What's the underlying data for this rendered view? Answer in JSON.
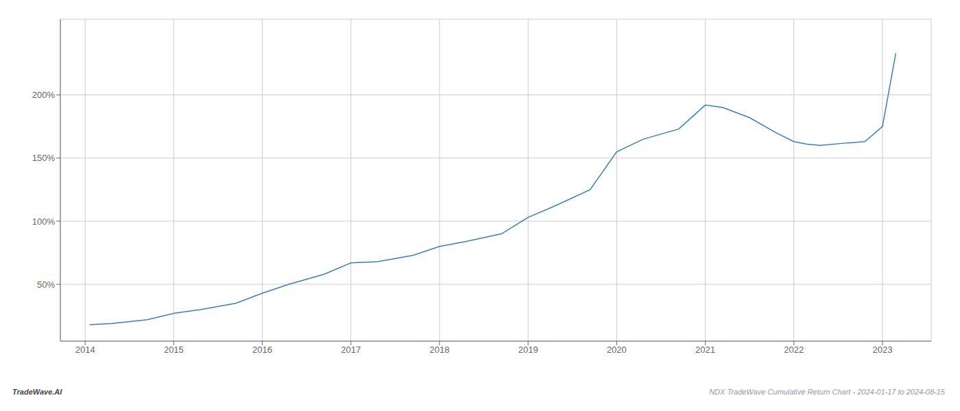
{
  "chart_data": {
    "type": "line",
    "x": [
      2014.05,
      2014.3,
      2014.7,
      2015.0,
      2015.3,
      2015.7,
      2016.0,
      2016.3,
      2016.7,
      2017.0,
      2017.3,
      2017.7,
      2018.0,
      2018.3,
      2018.7,
      2019.0,
      2019.3,
      2019.7,
      2020.0,
      2020.3,
      2020.7,
      2021.0,
      2021.2,
      2021.5,
      2021.8,
      2022.0,
      2022.15,
      2022.3,
      2022.6,
      2022.8,
      2023.0,
      2023.15
    ],
    "values": [
      18,
      19,
      22,
      27,
      30,
      35,
      43,
      50,
      58,
      67,
      68,
      73,
      80,
      84,
      90,
      103,
      112,
      125,
      155,
      165,
      173,
      192,
      190,
      182,
      170,
      163,
      161,
      160,
      162,
      163,
      175,
      233
    ],
    "color": "#3a7ebf",
    "xlim": [
      2013.72,
      2023.55
    ],
    "ylim": [
      5,
      260
    ],
    "xticks": [
      2014,
      2015,
      2016,
      2017,
      2018,
      2019,
      2020,
      2021,
      2022,
      2023
    ],
    "yticks": [
      {
        "value": 50,
        "label": "50%"
      },
      {
        "value": 100,
        "label": "100%"
      },
      {
        "value": 150,
        "label": "150%"
      },
      {
        "value": 200,
        "label": "200%"
      }
    ],
    "grid": true,
    "annotations": [
      "TradeWave.AI",
      "NDX TradeWave Cumulative Return Chart - 2024-01-17 to 2024-08-15"
    ]
  }
}
